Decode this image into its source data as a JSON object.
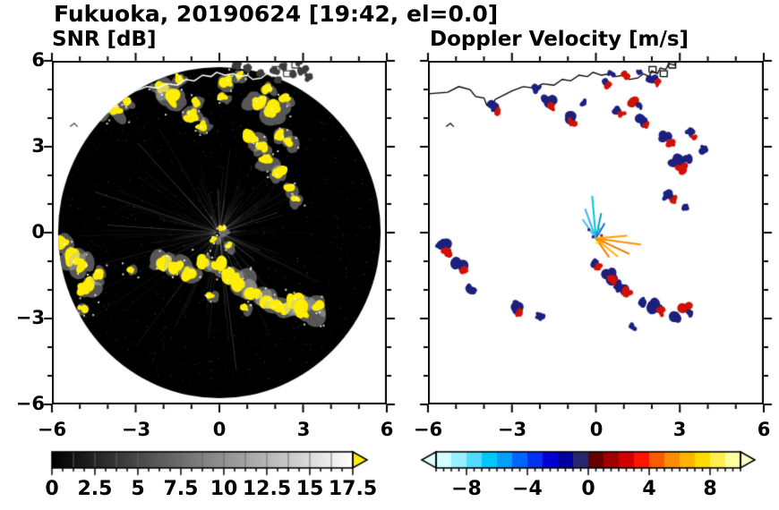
{
  "title": "Fukuoka, 20190624 [19:42, el=0.0]",
  "left_panel": {
    "subtitle": "SNR [dB]",
    "colorbar_labels": [
      "0",
      "2.5",
      "5",
      "7.5",
      "10",
      "12.5",
      "15",
      "17.5"
    ]
  },
  "right_panel": {
    "subtitle": "Doppler Velocity [m/s]",
    "colorbar_labels": [
      "−8",
      "−4",
      "0",
      "4",
      "8"
    ]
  },
  "axes": {
    "x_tick_labels": [
      "−6",
      "−3",
      "0",
      "3",
      "6"
    ],
    "y_tick_labels": [
      "6",
      "3",
      "0",
      "−3",
      "−6"
    ],
    "xlim": [
      -6,
      6
    ],
    "ylim": [
      -6,
      6
    ],
    "major_step": 3,
    "minor_step": 1
  },
  "map": {
    "coastline": [
      [
        -6.0,
        4.85
      ],
      [
        -5.3,
        4.9
      ],
      [
        -4.9,
        5.1
      ],
      [
        -4.5,
        5.0
      ],
      [
        -4.3,
        4.75
      ],
      [
        -4.0,
        4.7
      ],
      [
        -3.9,
        4.45
      ],
      [
        -3.7,
        4.4
      ],
      [
        -3.6,
        4.65
      ],
      [
        -3.3,
        4.8
      ],
      [
        -3.0,
        4.95
      ],
      [
        -2.6,
        5.1
      ],
      [
        -2.2,
        5.05
      ],
      [
        -1.9,
        5.2
      ],
      [
        -1.5,
        5.15
      ],
      [
        -1.2,
        5.35
      ],
      [
        -0.9,
        5.3
      ],
      [
        -0.6,
        5.5
      ],
      [
        -0.3,
        5.45
      ],
      [
        -0.1,
        5.6
      ],
      [
        0.2,
        5.5
      ],
      [
        0.5,
        5.55
      ],
      [
        0.7,
        5.45
      ],
      [
        1.0,
        5.5
      ],
      [
        1.2,
        5.35
      ],
      [
        1.5,
        5.4
      ],
      [
        1.7,
        5.55
      ],
      [
        1.9,
        5.45
      ],
      [
        2.0,
        5.65
      ],
      [
        2.2,
        5.55
      ],
      [
        2.3,
        5.75
      ],
      [
        2.5,
        5.7
      ],
      [
        2.6,
        5.9
      ],
      [
        2.8,
        5.85
      ],
      [
        2.9,
        6.0
      ]
    ],
    "structures": [
      [
        [
          1.9,
          5.6
        ],
        [
          1.9,
          5.8
        ],
        [
          2.15,
          5.8
        ],
        [
          2.15,
          5.6
        ],
        [
          1.9,
          5.6
        ]
      ],
      [
        [
          2.3,
          5.45
        ],
        [
          2.3,
          5.65
        ],
        [
          2.55,
          5.65
        ],
        [
          2.55,
          5.45
        ],
        [
          2.3,
          5.45
        ]
      ],
      [
        [
          2.6,
          5.75
        ],
        [
          2.85,
          5.75
        ],
        [
          2.85,
          5.95
        ],
        [
          2.6,
          5.95
        ],
        [
          2.6,
          5.75
        ]
      ],
      [
        [
          -5.35,
          3.7
        ],
        [
          -5.2,
          3.82
        ],
        [
          -5.08,
          3.7
        ]
      ]
    ]
  },
  "chart_data": [
    {
      "type": "heatmap",
      "title": "SNR [dB]",
      "units": "dB",
      "xlim": [
        -6,
        6
      ],
      "ylim": [
        -6,
        6
      ],
      "scan_radius": 5.78,
      "background_color": "#000000",
      "echo_color": "#ffee00",
      "colorbar": {
        "min": 0,
        "max": 17.5,
        "tick_values": [
          0,
          2.5,
          5,
          7.5,
          10,
          12.5,
          15,
          17.5
        ],
        "gradient": [
          "#000000",
          "#ffffff"
        ],
        "over_color": "#ffee00"
      },
      "echoes_xys": [
        [
          -4.15,
          4.45,
          0.22
        ],
        [
          -3.7,
          4.25,
          0.18
        ],
        [
          -3.3,
          4.6,
          0.12
        ],
        [
          -2.1,
          5.05,
          0.18
        ],
        [
          -1.75,
          4.7,
          0.25
        ],
        [
          -1.45,
          5.35,
          0.14
        ],
        [
          -1.05,
          4.05,
          0.2
        ],
        [
          -0.9,
          4.55,
          0.12
        ],
        [
          -0.6,
          3.75,
          0.15
        ],
        [
          0.25,
          5.3,
          0.18
        ],
        [
          0.7,
          5.5,
          0.13
        ],
        [
          0.15,
          4.75,
          0.12
        ],
        [
          1.35,
          4.6,
          0.22
        ],
        [
          1.7,
          5.05,
          0.14
        ],
        [
          2.0,
          4.3,
          0.24
        ],
        [
          2.35,
          4.65,
          0.14
        ],
        [
          1.15,
          3.3,
          0.2
        ],
        [
          1.5,
          3.0,
          0.15
        ],
        [
          2.15,
          3.45,
          0.17
        ],
        [
          2.5,
          3.15,
          0.14
        ],
        [
          1.75,
          2.5,
          0.2
        ],
        [
          2.1,
          2.1,
          0.17
        ],
        [
          2.5,
          1.6,
          0.14
        ],
        [
          2.75,
          1.15,
          0.12
        ],
        [
          0.1,
          0.15,
          0.1
        ],
        [
          -0.2,
          -0.25,
          0.08
        ],
        [
          0.35,
          -0.45,
          0.1
        ],
        [
          -5.65,
          -0.35,
          0.2
        ],
        [
          -5.4,
          -0.8,
          0.25
        ],
        [
          -5.0,
          -1.1,
          0.2
        ],
        [
          -4.75,
          -1.9,
          0.22
        ],
        [
          -4.4,
          -1.45,
          0.18
        ],
        [
          -4.9,
          -2.65,
          0.14
        ],
        [
          -3.2,
          -1.3,
          0.12
        ],
        [
          -2.05,
          -1.0,
          0.2
        ],
        [
          -1.55,
          -1.15,
          0.22
        ],
        [
          -1.05,
          -1.4,
          0.2
        ],
        [
          -0.55,
          -1.0,
          0.18
        ],
        [
          -0.05,
          -1.15,
          0.2
        ],
        [
          0.3,
          -1.5,
          0.22
        ],
        [
          0.75,
          -1.75,
          0.25
        ],
        [
          1.25,
          -2.1,
          0.22
        ],
        [
          1.7,
          -2.4,
          0.2
        ],
        [
          2.2,
          -2.55,
          0.25
        ],
        [
          2.7,
          -2.45,
          0.22
        ],
        [
          3.1,
          -2.7,
          0.25
        ],
        [
          3.5,
          -2.5,
          0.17
        ],
        [
          0.9,
          -2.6,
          0.12
        ],
        [
          -0.3,
          -2.2,
          0.1
        ]
      ],
      "land_clutter": [
        [
          1.05,
          5.75
        ],
        [
          1.45,
          5.55
        ],
        [
          1.95,
          5.65
        ],
        [
          2.3,
          5.8
        ],
        [
          2.6,
          5.55
        ],
        [
          3.0,
          5.7
        ],
        [
          2.05,
          5.35
        ],
        [
          2.85,
          5.95
        ],
        [
          3.25,
          5.45
        ],
        [
          0.6,
          5.85
        ]
      ]
    },
    {
      "type": "heatmap",
      "title": "Doppler Velocity [m/s]",
      "units": "m/s",
      "xlim": [
        -6,
        6
      ],
      "ylim": [
        -6,
        6
      ],
      "background_color": "#ffffff",
      "echo_colors": {
        "b": "#1b1f7e",
        "r": "#d01000"
      },
      "colorbar": {
        "min": -10,
        "max": 10,
        "tick_values": [
          -8,
          -4,
          0,
          4,
          8
        ],
        "colors": [
          "#d2ffff",
          "#96f0ff",
          "#50dcff",
          "#00c8ff",
          "#00a0ff",
          "#0064ff",
          "#0032f0",
          "#0000d2",
          "#0000a0",
          "#28286e",
          "#640000",
          "#a00000",
          "#d20000",
          "#ff1400",
          "#ff5a00",
          "#ff8c00",
          "#ffb400",
          "#ffdc00",
          "#fff050",
          "#ffffa0"
        ],
        "under_color": "#e0ffff",
        "over_color": "#ffffc8"
      },
      "echoes_xysc": [
        [
          -3.6,
          4.4,
          0.18,
          "b"
        ],
        [
          -3.48,
          4.24,
          0.12,
          "r"
        ],
        [
          -2.1,
          5.0,
          0.14,
          "b"
        ],
        [
          -1.7,
          4.6,
          0.2,
          "b"
        ],
        [
          -1.54,
          4.44,
          0.13,
          "r"
        ],
        [
          -1.0,
          4.0,
          0.17,
          "b"
        ],
        [
          -0.85,
          3.86,
          0.11,
          "r"
        ],
        [
          -0.45,
          4.55,
          0.1,
          "b"
        ],
        [
          0.3,
          5.3,
          0.14,
          "b"
        ],
        [
          0.46,
          5.16,
          0.1,
          "r"
        ],
        [
          0.55,
          5.55,
          0.1,
          "b"
        ],
        [
          1.05,
          5.5,
          0.1,
          "r"
        ],
        [
          1.5,
          5.6,
          0.09,
          "b"
        ],
        [
          0.8,
          4.3,
          0.14,
          "b"
        ],
        [
          0.95,
          4.16,
          0.1,
          "r"
        ],
        [
          1.4,
          4.6,
          0.16,
          "r"
        ],
        [
          1.56,
          4.45,
          0.11,
          "b"
        ],
        [
          2.0,
          5.35,
          0.14,
          "b"
        ],
        [
          2.18,
          5.22,
          0.1,
          "r"
        ],
        [
          1.6,
          3.9,
          0.16,
          "b"
        ],
        [
          1.76,
          3.76,
          0.1,
          "r"
        ],
        [
          3.35,
          3.5,
          0.12,
          "b"
        ],
        [
          3.5,
          3.35,
          0.09,
          "r"
        ],
        [
          2.5,
          3.3,
          0.19,
          "b"
        ],
        [
          2.66,
          3.14,
          0.13,
          "r"
        ],
        [
          2.9,
          2.4,
          0.21,
          "b"
        ],
        [
          3.06,
          2.24,
          0.14,
          "r"
        ],
        [
          3.3,
          2.6,
          0.14,
          "b"
        ],
        [
          3.9,
          2.9,
          0.12,
          "b"
        ],
        [
          2.6,
          1.3,
          0.14,
          "b"
        ],
        [
          2.76,
          1.16,
          0.1,
          "r"
        ],
        [
          3.2,
          0.9,
          0.11,
          "b"
        ],
        [
          -5.5,
          -0.5,
          0.19,
          "b"
        ],
        [
          -5.34,
          -0.68,
          0.14,
          "r"
        ],
        [
          -4.9,
          -1.15,
          0.21,
          "b"
        ],
        [
          -4.7,
          -1.34,
          0.15,
          "r"
        ],
        [
          -4.5,
          -2.0,
          0.14,
          "b"
        ],
        [
          -2.9,
          -2.6,
          0.19,
          "b"
        ],
        [
          -2.7,
          -2.8,
          0.13,
          "r"
        ],
        [
          -2.0,
          -2.9,
          0.14,
          "b"
        ],
        [
          -0.1,
          -1.05,
          0.14,
          "b"
        ],
        [
          0.06,
          -1.2,
          0.11,
          "r"
        ],
        [
          0.45,
          -1.5,
          0.23,
          "b"
        ],
        [
          0.66,
          -1.7,
          0.18,
          "r"
        ],
        [
          0.9,
          -1.9,
          0.2,
          "b"
        ],
        [
          1.1,
          -2.05,
          0.14,
          "r"
        ],
        [
          1.6,
          -2.4,
          0.16,
          "b"
        ],
        [
          2.2,
          -2.55,
          0.21,
          "b"
        ],
        [
          2.42,
          -2.74,
          0.14,
          "r"
        ],
        [
          2.8,
          -2.9,
          0.18,
          "b"
        ],
        [
          3.2,
          -2.6,
          0.16,
          "r"
        ],
        [
          3.42,
          -2.8,
          0.11,
          "b"
        ],
        [
          1.3,
          -3.3,
          0.1,
          "b"
        ]
      ],
      "center_streaks_origin": [
        0,
        -0.2
      ],
      "center_streaks": [
        [
          95,
          1.5,
          "#00c8dc"
        ],
        [
          110,
          1.1,
          "#3cb4f0"
        ],
        [
          78,
          0.9,
          "#00a0b4"
        ],
        [
          125,
          0.8,
          "#46c8e6"
        ],
        [
          60,
          0.6,
          "#1e6edc"
        ],
        [
          -8,
          1.6,
          "#ff9100"
        ],
        [
          -25,
          1.3,
          "#f07800"
        ],
        [
          -40,
          1.0,
          "#ffb400"
        ],
        [
          -55,
          0.8,
          "#ff7d00"
        ],
        [
          5,
          1.1,
          "#ffa000"
        ]
      ],
      "center_dots": [
        [
          0.05,
          -0.35,
          "#ffee00"
        ],
        [
          -0.1,
          -0.15,
          "#1b1f7e"
        ],
        [
          0.2,
          -0.1,
          "#d01000"
        ],
        [
          -0.25,
          0.1,
          "#1b1f7e"
        ],
        [
          0.1,
          0.12,
          "#00c8dc"
        ],
        [
          0.3,
          -0.25,
          "#ff9100"
        ]
      ]
    }
  ]
}
